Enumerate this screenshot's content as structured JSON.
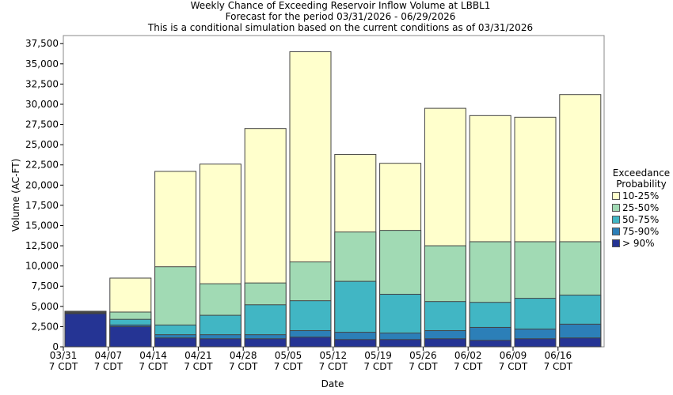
{
  "chart_data": {
    "type": "bar",
    "stacked": true,
    "title": "Weekly Chance of Exceeding Reservoir Inflow Volume at LBBL1",
    "subtitle_1": "Forecast for the period 03/31/2026 - 06/29/2026",
    "subtitle_2": "This is a conditional simulation based on the current conditions as of 03/31/2026",
    "xlabel": "Date",
    "ylabel": "Volume (AC-FT)",
    "ylim": [
      0,
      38500
    ],
    "yticks": [
      "0",
      "2,500",
      "5,000",
      "7,500",
      "10,000",
      "12,500",
      "15,000",
      "17,500",
      "20,000",
      "22,500",
      "25,000",
      "27,500",
      "30,000",
      "32,500",
      "35,000",
      "37,500"
    ],
    "xticks": [
      {
        "date": "03/31",
        "tz": "7 CDT"
      },
      {
        "date": "04/07",
        "tz": "7 CDT"
      },
      {
        "date": "04/14",
        "tz": "7 CDT"
      },
      {
        "date": "04/21",
        "tz": "7 CDT"
      },
      {
        "date": "04/28",
        "tz": "7 CDT"
      },
      {
        "date": "05/05",
        "tz": "7 CDT"
      },
      {
        "date": "05/12",
        "tz": "7 CDT"
      },
      {
        "date": "05/19",
        "tz": "7 CDT"
      },
      {
        "date": "05/26",
        "tz": "7 CDT"
      },
      {
        "date": "06/02",
        "tz": "7 CDT"
      },
      {
        "date": "06/09",
        "tz": "7 CDT"
      },
      {
        "date": "06/16",
        "tz": "7 CDT"
      }
    ],
    "legend_title": [
      "Exceedance",
      "Probability"
    ],
    "legend_placement": "right",
    "categories": [
      "03/31",
      "04/07",
      "04/14",
      "04/21",
      "04/28",
      "05/05",
      "05/12",
      "05/19",
      "05/26",
      "06/02",
      "06/09",
      "06/16"
    ],
    "series": [
      {
        "name": "10-25%",
        "color": "#ffffcc",
        "top_values": [
          4400,
          8500,
          21700,
          22600,
          27000,
          36500,
          23800,
          22700,
          29500,
          28600,
          28400,
          31200
        ]
      },
      {
        "name": "25-50%",
        "color": "#a1dab4",
        "top_values": [
          4300,
          4300,
          9900,
          7800,
          7900,
          10500,
          14200,
          14400,
          12500,
          13000,
          13000,
          13000
        ]
      },
      {
        "name": "50-75%",
        "color": "#41b6c4",
        "top_values": [
          4200,
          3400,
          2700,
          3900,
          5200,
          5700,
          8100,
          6500,
          5600,
          5500,
          6000,
          6400
        ]
      },
      {
        "name": "75-90%",
        "color": "#2c7fb8",
        "top_values": [
          4150,
          2700,
          1500,
          1500,
          1500,
          2000,
          1800,
          1700,
          2000,
          2400,
          2200,
          2800
        ]
      },
      {
        "name": "> 90%",
        "color": "#253494",
        "top_values": [
          4100,
          2500,
          1100,
          1000,
          1000,
          1200,
          900,
          900,
          1000,
          800,
          1000,
          1100
        ]
      }
    ],
    "grid": false
  }
}
